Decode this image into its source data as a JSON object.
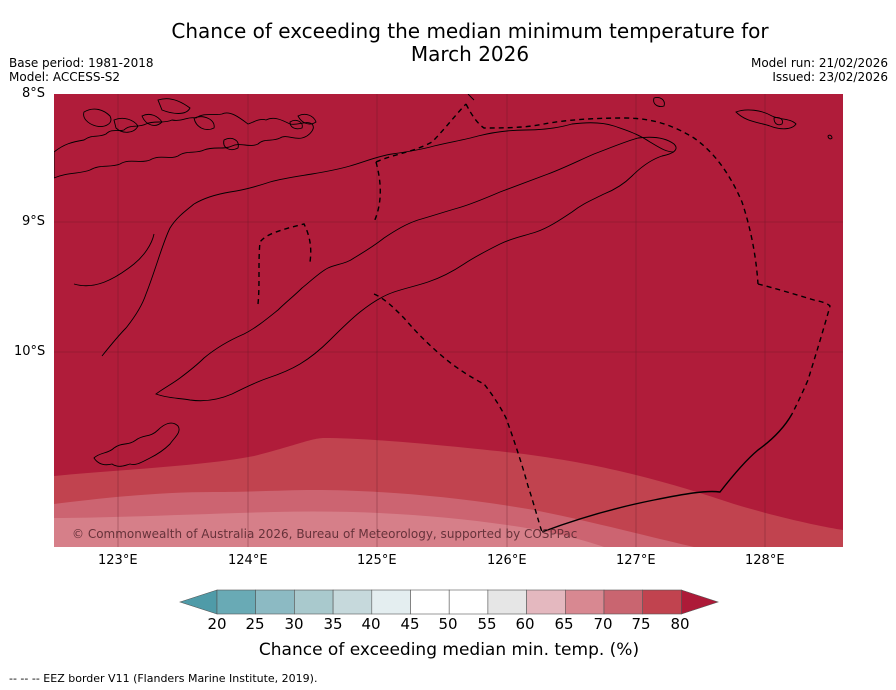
{
  "title_line1": "Chance of exceeding the median minimum temperature for",
  "title_line2": "March 2026",
  "base_period": "Base period: 1981-2018",
  "model": "Model: ACCESS-S2",
  "model_run": "Model run: 21/02/2026",
  "issued": "Issued: 23/02/2026",
  "lat_labels": [
    "8°S",
    "9°S",
    "10°S"
  ],
  "lon_labels": [
    "123°E",
    "124°E",
    "125°E",
    "126°E",
    "127°E",
    "128°E"
  ],
  "copyright": "© Commonwealth of Australia 2026, Bureau of Meteorology, supported by COSPPac",
  "colorbar": {
    "ticks": [
      "20",
      "25",
      "30",
      "35",
      "40",
      "45",
      "50",
      "55",
      "60",
      "65",
      "70",
      "75",
      "80"
    ],
    "colors": [
      "#4f9ba8",
      "#69aab5",
      "#8cbac3",
      "#a9c9cd",
      "#c6d9dc",
      "#e4eef0",
      "#ffffff",
      "#ffffff",
      "#e6e6e6",
      "#e4b8bf",
      "#d88891",
      "#c96570",
      "#c1434f",
      "#ad1a38"
    ],
    "label": "Chance of exceeding median min. temp. (%)"
  },
  "footnote": "-- -- -- EEZ border V11 (Flanders Marine Institute, 2019)."
}
